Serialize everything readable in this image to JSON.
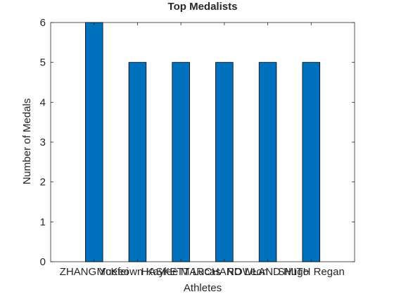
{
  "chart_data": {
    "type": "bar",
    "title": "Top Medalists",
    "xlabel": "Athletes",
    "ylabel": "Number of Medals",
    "categories": [
      "ZHANG Yuefei",
      "McKeown Kaylee",
      "HASKETT Lucas",
      "MARCHAND Leon",
      "ROWLAND Hugo",
      "SMITH Regan"
    ],
    "values": [
      6,
      5,
      5,
      5,
      5,
      5
    ],
    "ylim": [
      0,
      6
    ],
    "yticks": [
      0,
      1,
      2,
      3,
      4,
      5,
      6
    ],
    "xlim": [
      0,
      7
    ],
    "grid": false,
    "legend": false,
    "colors": {
      "bar": "#0072bd",
      "bar_edge": "#000000",
      "axis": "#262626"
    }
  }
}
